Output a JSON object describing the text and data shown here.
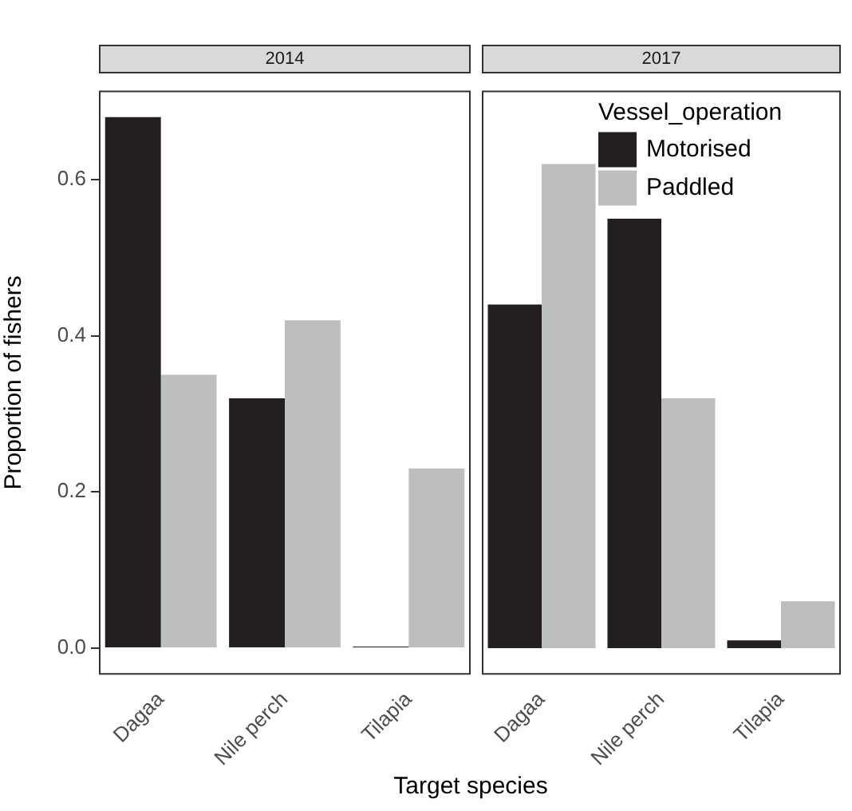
{
  "chart_data": [
    {
      "type": "bar",
      "title": "2014",
      "categories": [
        "Dagaa",
        "Nile perch",
        "Tilapia"
      ],
      "xlabel": "Target species",
      "ylabel": "Proportion of fishers",
      "series": [
        {
          "color": "#231f20",
          "values": [
            0.68,
            0.32,
            0.002
          ]
        },
        {
          "color": "#bcbec0",
          "values": [
            0.35,
            0.42,
            0.23
          ]
        }
      ],
      "ylim": [
        -0.034,
        0.714
      ],
      "yticks": [
        {
          "value": 0,
          "label": "0.0"
        },
        0.2,
        0.4,
        0.6
      ],
      "grid": false,
      "legend": false
    },
    {
      "type": "bar",
      "title": "2017",
      "categories": [
        "Dagaa",
        "Nile perch",
        "Tilapia"
      ],
      "legend_title": "Vessel_operation",
      "series": [
        {
          "name": "Motorised",
          "color": "#231f20",
          "values": [
            0.44,
            0.55,
            0.01
          ]
        },
        {
          "name": "Paddled",
          "color": "#bcbec0",
          "values": [
            0.62,
            0.32,
            0.06
          ]
        }
      ],
      "ylim": [
        -0.034,
        0.714
      ],
      "grid": false,
      "legend": "top right",
      "tick_labels": "x"
    }
  ]
}
